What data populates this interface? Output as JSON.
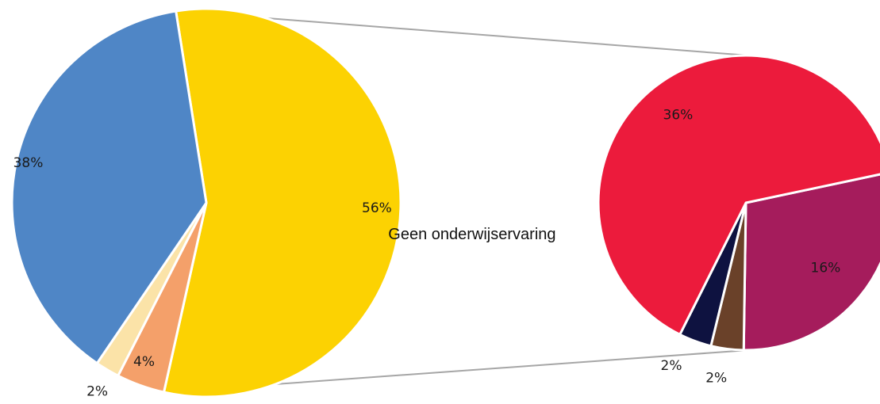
{
  "chart_data": {
    "type": "pie",
    "subtype": "pie-of-pie",
    "main_pie": {
      "slices": [
        {
          "label": "Geen onderwijservaring",
          "value": 56,
          "value_label": "56%",
          "color": "#FCD202"
        },
        {
          "label": "",
          "value": 4,
          "value_label": "4%",
          "color": "#F4A06A"
        },
        {
          "label": "",
          "value": 2,
          "value_label": "2%",
          "color": "#FBE3A8"
        },
        {
          "label": "",
          "value": 38,
          "value_label": "38%",
          "color": "#4F86C6"
        }
      ]
    },
    "secondary_pie": {
      "slices": [
        {
          "label": "",
          "value": 16,
          "value_label": "16%",
          "color": "#A51C5C"
        },
        {
          "label": "",
          "value": 2,
          "value_label": "2%",
          "color": "#6A4129"
        },
        {
          "label": "",
          "value": 2,
          "value_label": "2%",
          "color": "#0E1240"
        },
        {
          "label": "",
          "value": 36,
          "value_label": "36%",
          "color": "#EC1B3C"
        }
      ]
    },
    "connector_color": "#A6A6A6",
    "slice_separator_color": "#FFFFFF"
  }
}
